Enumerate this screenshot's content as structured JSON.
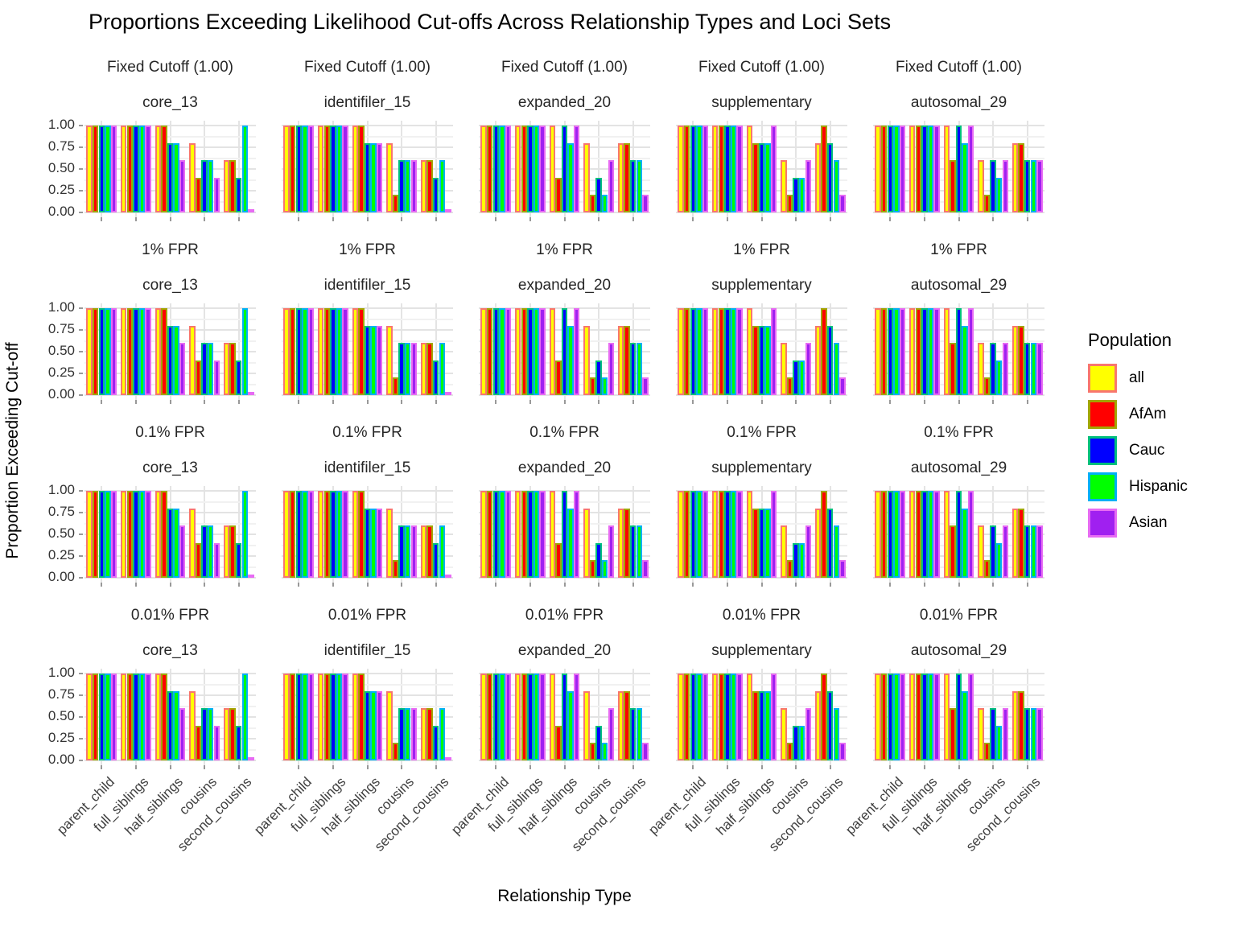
{
  "title": "Proportions Exceeding Likelihood Cut-offs Across Relationship Types and Loci Sets",
  "axes": {
    "x_title": "Relationship Type",
    "y_title": "Proportion Exceeding Cut-off",
    "y_tick_labels": [
      "1.00",
      "0.75",
      "0.50",
      "0.25",
      "0.00"
    ]
  },
  "legend": {
    "title": "Population",
    "entries": [
      {
        "label": "all",
        "fill": "#FFFF00",
        "outline": "#F8766D"
      },
      {
        "label": "AfAm",
        "fill": "#FF0000",
        "outline": "#A3A500"
      },
      {
        "label": "Cauc",
        "fill": "#0000FF",
        "outline": "#00BF7D"
      },
      {
        "label": "Hispanic",
        "fill": "#00FF00",
        "outline": "#00B0F6"
      },
      {
        "label": "Asian",
        "fill": "#A020F0",
        "outline": "#E76BF3"
      }
    ]
  },
  "colors": {
    "grid_major": "#E3E3E3",
    "grid_minor": "#F1F1F1",
    "grid_vertical": "#E4E4E4",
    "axis_text": "#404040",
    "tick_mark": "#999999"
  },
  "chart_data": {
    "type": "bar",
    "title": "Proportions Exceeding Likelihood Cut-offs Across Relationship Types and Loci Sets",
    "xlabel": "Relationship Type",
    "ylabel": "Proportion Exceeding Cut-off",
    "ylim": [
      0,
      1
    ],
    "y_major_ticks": [
      0,
      0.25,
      0.5,
      0.75,
      1.0
    ],
    "y_minor_ticks": [
      0.125,
      0.375,
      0.625,
      0.875
    ],
    "grid": "on",
    "legend_position": "right",
    "facet_rows": [
      "Fixed Cutoff (1.00)",
      "1% FPR",
      "0.1% FPR",
      "0.01% FPR"
    ],
    "facet_cols": [
      "core_13",
      "identifiler_15",
      "expanded_20",
      "supplementary",
      "autosomal_29"
    ],
    "categories": [
      "parent_child",
      "full_siblings",
      "half_siblings",
      "cousins",
      "second_cousins"
    ],
    "series_names": [
      "all",
      "AfAm",
      "Cauc",
      "Hispanic",
      "Asian"
    ],
    "values_by_loci_set": {
      "core_13": [
        [
          1.0,
          1.0,
          1.0,
          1.0,
          1.0
        ],
        [
          1.0,
          1.0,
          1.0,
          1.0,
          1.0
        ],
        [
          1.0,
          1.0,
          0.8,
          0.8,
          0.6
        ],
        [
          0.8,
          0.4,
          0.6,
          0.6,
          0.4
        ],
        [
          0.6,
          0.6,
          0.4,
          1.0,
          0.0
        ]
      ],
      "identifiler_15": [
        [
          1.0,
          1.0,
          1.0,
          1.0,
          1.0
        ],
        [
          1.0,
          1.0,
          1.0,
          1.0,
          1.0
        ],
        [
          1.0,
          1.0,
          0.8,
          0.8,
          0.8
        ],
        [
          0.8,
          0.2,
          0.6,
          0.6,
          0.6
        ],
        [
          0.6,
          0.6,
          0.4,
          0.6,
          0.0
        ]
      ],
      "expanded_20": [
        [
          1.0,
          1.0,
          1.0,
          1.0,
          1.0
        ],
        [
          1.0,
          1.0,
          1.0,
          1.0,
          1.0
        ],
        [
          1.0,
          0.4,
          1.0,
          0.8,
          1.0
        ],
        [
          0.8,
          0.2,
          0.4,
          0.2,
          0.6
        ],
        [
          0.8,
          0.8,
          0.6,
          0.6,
          0.2
        ]
      ],
      "supplementary": [
        [
          1.0,
          1.0,
          1.0,
          1.0,
          1.0
        ],
        [
          1.0,
          1.0,
          1.0,
          1.0,
          1.0
        ],
        [
          1.0,
          0.8,
          0.8,
          0.8,
          1.0
        ],
        [
          0.6,
          0.2,
          0.4,
          0.4,
          0.6
        ],
        [
          0.8,
          1.0,
          0.8,
          0.6,
          0.2
        ]
      ],
      "autosomal_29": [
        [
          1.0,
          1.0,
          1.0,
          1.0,
          1.0
        ],
        [
          1.0,
          1.0,
          1.0,
          1.0,
          1.0
        ],
        [
          1.0,
          0.6,
          1.0,
          0.8,
          1.0
        ],
        [
          0.6,
          0.2,
          0.6,
          0.4,
          0.6
        ],
        [
          0.8,
          0.8,
          0.6,
          0.6,
          0.6
        ]
      ]
    }
  }
}
